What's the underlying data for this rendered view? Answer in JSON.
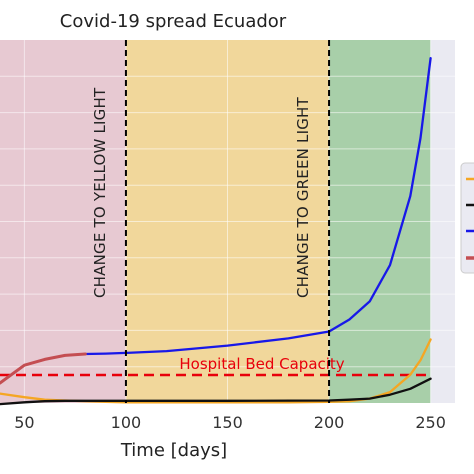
{
  "chart_data": {
    "type": "line",
    "title": "Covid-19 spread Ecuador",
    "xlabel": "Time [days]",
    "ylabel": "",
    "xlim": [
      38,
      262
    ],
    "ylim": [
      0,
      100
    ],
    "x_ticks": [
      "50",
      "100",
      "150",
      "200",
      "250"
    ],
    "grid": true,
    "legend_position": "right",
    "phases": [
      {
        "from": 38,
        "to": 100,
        "color": "#e7c9d2"
      },
      {
        "from": 100,
        "to": 200,
        "color": "#f1d79b"
      },
      {
        "from": 200,
        "to": 250,
        "color": "#a8cfa9"
      }
    ],
    "phase_lines": [
      {
        "x": 100,
        "label": "CHANGE TO YELLOW LIGHT"
      },
      {
        "x": 200,
        "label": "CHANGE TO GREEN LIGHT"
      }
    ],
    "capacity_line": {
      "y": 7.7,
      "label": "Hospital Bed Capacity",
      "color": "#e8000b"
    },
    "series": [
      {
        "color": "#f5a623",
        "x": [
          38,
          50,
          60,
          70,
          80,
          90,
          100,
          120,
          150,
          180,
          200,
          210,
          220,
          230,
          240,
          245,
          250
        ],
        "y": [
          2.6,
          1.6,
          0.9,
          0.7,
          0.5,
          0.3,
          0.2,
          0.2,
          0.2,
          0.2,
          0.3,
          0.5,
          1.2,
          3.0,
          7.8,
          11.8,
          17.5
        ]
      },
      {
        "color": "#111111",
        "x": [
          38,
          50,
          60,
          70,
          80,
          100,
          150,
          200,
          210,
          220,
          230,
          240,
          250
        ],
        "y": [
          -0.3,
          0.2,
          0.5,
          0.6,
          0.6,
          0.6,
          0.6,
          0.7,
          0.9,
          1.2,
          2.3,
          3.9,
          6.7
        ]
      },
      {
        "color": "#1818e8",
        "x": [
          38,
          50,
          60,
          70,
          80,
          90,
          100,
          120,
          150,
          180,
          200,
          210,
          220,
          230,
          240,
          245,
          250
        ],
        "y": [
          5.5,
          10.4,
          12.0,
          13.1,
          13.5,
          13.6,
          13.8,
          14.3,
          15.8,
          17.8,
          19.7,
          23.0,
          28.0,
          38.0,
          57.0,
          73.0,
          95.0
        ]
      },
      {
        "color": "#c44e52",
        "x": [
          38,
          50,
          60,
          70,
          80
        ],
        "y": [
          5.5,
          10.4,
          12.0,
          13.1,
          13.5
        ]
      }
    ]
  }
}
